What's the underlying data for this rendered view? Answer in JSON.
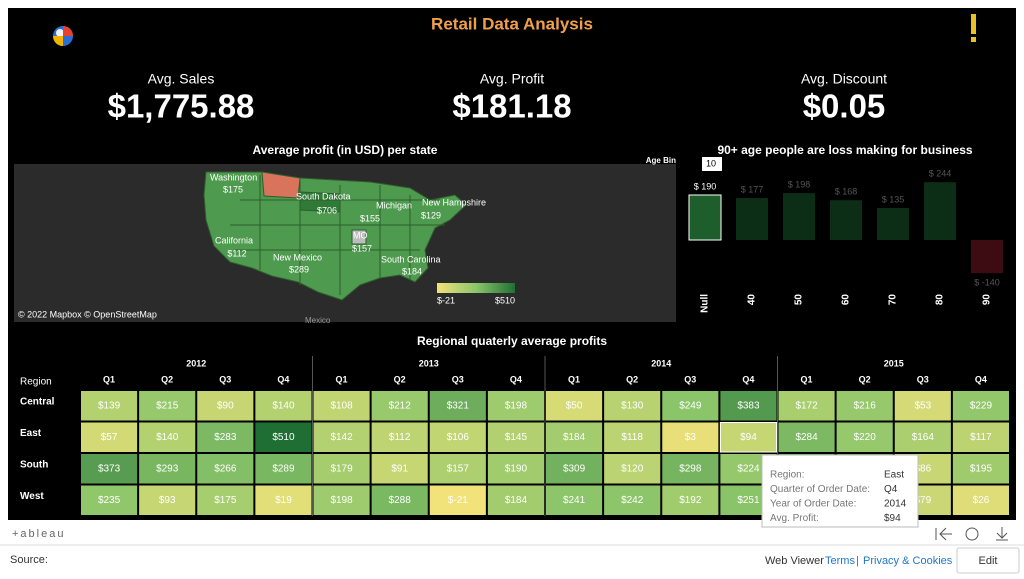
{
  "header": {
    "title": "Retail Data Analysis"
  },
  "kpis": [
    {
      "label": "Avg. Sales",
      "value": "$1,775.88"
    },
    {
      "label": "Avg. Profit",
      "value": "$181.18"
    },
    {
      "label": "Avg. Discount",
      "value": "$0.05"
    }
  ],
  "map": {
    "title": "Average profit (in USD) per state",
    "labels": [
      {
        "name": "Washington",
        "value": "$175"
      },
      {
        "name": "South Dakota",
        "value": "$706"
      },
      {
        "name": "Michigan",
        "value": "$155"
      },
      {
        "name": "New Hampshire",
        "value": "$129"
      },
      {
        "name": "California",
        "value": "$112"
      },
      {
        "name": "MO",
        "value": "$157"
      },
      {
        "name": "New Mexico",
        "value": "$289"
      },
      {
        "name": "South Carolina",
        "value": "$184"
      }
    ],
    "legend": {
      "min": "$-21",
      "max": "$510"
    },
    "attribution": "© 2022 Mapbox © OpenStreetMap",
    "country": "Mexico"
  },
  "age_chart": {
    "title": "90+ age people are loss making for business",
    "filter_label": "Age Bin",
    "filter_value": "10",
    "categories": [
      "Null",
      "40",
      "50",
      "60",
      "70",
      "80",
      "90"
    ],
    "values": [
      190,
      177,
      198,
      168,
      135,
      244,
      -140
    ],
    "value_labels": [
      "$ 190",
      "$ 177",
      "$ 198",
      "$ 168",
      "$ 135",
      "$ 244",
      "$ -140"
    ]
  },
  "heatmap": {
    "title": "Regional quaterly average profits",
    "row_header": "Region",
    "years": [
      "2012",
      "2013",
      "2014",
      "2015"
    ],
    "quarters": [
      "Q1",
      "Q2",
      "Q3",
      "Q4"
    ],
    "rows": [
      {
        "region": "Central",
        "cells": [
          "$139",
          "$215",
          "$90",
          "$140",
          "$108",
          "$212",
          "$321",
          "$198",
          "$50",
          "$130",
          "$249",
          "$383",
          "$172",
          "$216",
          "$53",
          "$229"
        ]
      },
      {
        "region": "East",
        "cells": [
          "$57",
          "$140",
          "$283",
          "$510",
          "$142",
          "$112",
          "$106",
          "$145",
          "$184",
          "$118",
          "$3",
          "$94",
          "$284",
          "$220",
          "$164",
          "$117"
        ]
      },
      {
        "region": "South",
        "cells": [
          "$373",
          "$293",
          "$266",
          "$289",
          "$179",
          "$91",
          "$157",
          "$190",
          "$309",
          "$120",
          "$298",
          "$224",
          null,
          null,
          "$86",
          "$195"
        ]
      },
      {
        "region": "West",
        "cells": [
          "$235",
          "$93",
          "$175",
          "$19",
          "$198",
          "$288",
          "$-21",
          "$184",
          "$241",
          "$242",
          "$192",
          "$251",
          null,
          null,
          "$79",
          "$26"
        ]
      }
    ]
  },
  "tooltip": {
    "rows": [
      [
        "Region:",
        "East"
      ],
      [
        "Quarter of Order Date:",
        "Q4"
      ],
      [
        "Year of Order Date:",
        "2014"
      ],
      [
        "Avg. Profit:",
        "$94"
      ]
    ]
  },
  "footer": {
    "brand": "+ableau",
    "source": "Source:",
    "viewer": "Web Viewer",
    "terms": "Terms",
    "separator": "|",
    "privacy": "Privacy & Cookies",
    "edit": "Edit"
  }
}
